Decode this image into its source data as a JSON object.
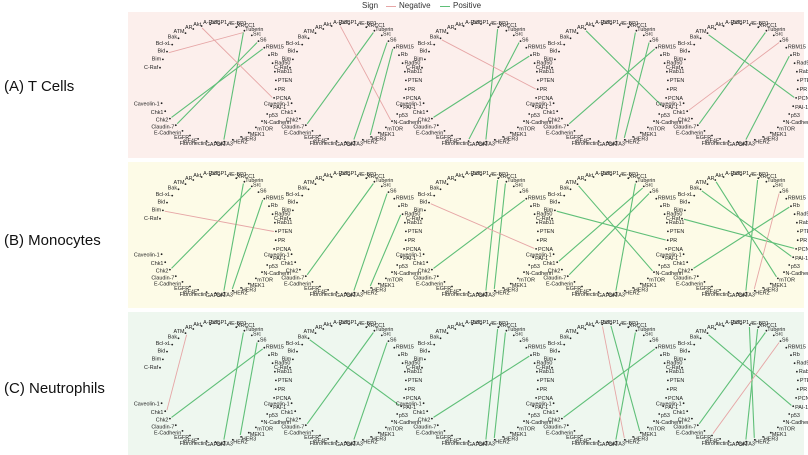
{
  "legend": {
    "title": "Sign",
    "negative_label": "Negative",
    "positive_label": "Positive",
    "negative_color": "#e6a6a6",
    "positive_color": "#5fbf78"
  },
  "nodes": [
    "C-Raf",
    "Bim",
    "Bid",
    "Bcl-xL",
    "Bak",
    "ATM",
    "AR",
    "Akt",
    "A-Raf",
    "53BP1",
    "4E-BP1",
    "XRCC1",
    "Tuberin",
    "Src",
    "S6",
    "RBM15",
    "Rb",
    "Rad50",
    "Rab11",
    "PTEN",
    "PR",
    "PCNA",
    "PAI-1",
    "p53",
    "N-Cadherin",
    "mTOR",
    "MEK1",
    "HER3",
    "HER2",
    "GATA3",
    "GAPDH",
    "Fibronectin",
    "eIF4E",
    "EGFR",
    "E-Cadherin",
    "Claudin-7",
    "Chk2",
    "Chk1",
    "Caveolin-1"
  ],
  "rows": [
    {
      "label": "(A) T Cells",
      "bg": "#fcefec",
      "edges": [
        [
          [
            "Bid",
            "Tuberin",
            "n"
          ],
          [
            "Chk2",
            "RBM15",
            "p"
          ],
          [
            "GATA3",
            "Tuberin",
            "p"
          ],
          [
            "Claudin-7",
            "S6",
            "p"
          ],
          [
            "Akt",
            "PCNA",
            "n"
          ]
        ],
        [
          [
            "Claudin-7",
            "Tuberin",
            "p"
          ],
          [
            "GATA3",
            "S6",
            "p"
          ],
          [
            "A-Raf",
            "N-Cadherin",
            "n"
          ],
          [
            "HER3",
            "RBM15",
            "p"
          ]
        ],
        [
          [
            "Chk2",
            "Rb",
            "p"
          ],
          [
            "GATA3",
            "XRCC1",
            "p"
          ],
          [
            "Bak",
            "PR",
            "n"
          ],
          [
            "Fibronectin",
            "S6",
            "p"
          ]
        ],
        [
          [
            "Claudin-7",
            "RBM15",
            "p"
          ],
          [
            "GATA3",
            "Tuberin",
            "p"
          ],
          [
            "AR",
            "PAI-1",
            "p"
          ],
          [
            "HER2",
            "S6",
            "p"
          ]
        ],
        [
          [
            "Claudin-7",
            "Tuberin",
            "p"
          ],
          [
            "GATA3",
            "Rb",
            "p"
          ],
          [
            "ATM",
            "PCNA",
            "p"
          ],
          [
            "Chk1",
            "S6",
            "n"
          ]
        ]
      ]
    },
    {
      "label": "(B) Monocytes",
      "bg": "#fdfbe7",
      "edges": [
        [
          [
            "Chk2",
            "Src",
            "p"
          ],
          [
            "Bim",
            "PTEN",
            "n"
          ],
          [
            "GATA3",
            "Tuberin",
            "p"
          ],
          [
            "HER2",
            "RBM15",
            "p"
          ]
        ],
        [
          [
            "Claudin-7",
            "Tuberin",
            "p"
          ],
          [
            "GATA3",
            "S6",
            "p"
          ],
          [
            "HER3",
            "Rad50",
            "p"
          ]
        ],
        [
          [
            "Chk2",
            "RBM15",
            "p"
          ],
          [
            "GATA3",
            "XRCC1",
            "p"
          ],
          [
            "HER2",
            "Tuberin",
            "p"
          ],
          [
            "Bid",
            "PCNA",
            "n"
          ]
        ],
        [
          [
            "Chk1",
            "Src",
            "p"
          ],
          [
            "Bim",
            "PR",
            "p"
          ],
          [
            "GATA3",
            "Tuberin",
            "p"
          ],
          [
            "Claudin-7",
            "S6",
            "p"
          ],
          [
            "ATM",
            "N-Cadherin",
            "p"
          ]
        ],
        [
          [
            "C-Raf",
            "PCNA",
            "p"
          ],
          [
            "Chk2",
            "Rb",
            "p"
          ],
          [
            "GATA3",
            "XRCC1",
            "p"
          ],
          [
            "AR",
            "mTOR",
            "p"
          ],
          [
            "HER2",
            "S6",
            "n"
          ],
          [
            "Bak",
            "PAI-1",
            "p"
          ]
        ]
      ]
    },
    {
      "label": "(C) Neutrophils",
      "bg": "#eef7ef",
      "edges": [
        [
          [
            "Chk2",
            "RBM15",
            "p"
          ],
          [
            "Chk1",
            "ATM",
            "n"
          ],
          [
            "GATA3",
            "Tuberin",
            "p"
          ],
          [
            "HER3",
            "S6",
            "p"
          ]
        ],
        [
          [
            "Claudin-7",
            "Tuberin",
            "p"
          ],
          [
            "GATA3",
            "S6",
            "p"
          ],
          [
            "Bak",
            "PAI-1",
            "p"
          ]
        ],
        [
          [
            "Chk2",
            "Rb",
            "p"
          ],
          [
            "GATA3",
            "XRCC1",
            "p"
          ],
          [
            "HER2",
            "Tuberin",
            "p"
          ]
        ],
        [
          [
            "Chk2",
            "RBM15",
            "p"
          ],
          [
            "GATA3",
            "Tuberin",
            "p"
          ],
          [
            "MEK1",
            "53BP1",
            "p"
          ],
          [
            "A-Raf",
            "HER2",
            "n"
          ]
        ],
        [
          [
            "Claudin-7",
            "Tuberin",
            "p"
          ],
          [
            "GATA3",
            "XRCC1",
            "p"
          ],
          [
            "ATM",
            "PAI-1",
            "p"
          ],
          [
            "HER2",
            "4E-BP1",
            "p"
          ],
          [
            "EGFR",
            "S6",
            "n"
          ]
        ]
      ]
    }
  ]
}
